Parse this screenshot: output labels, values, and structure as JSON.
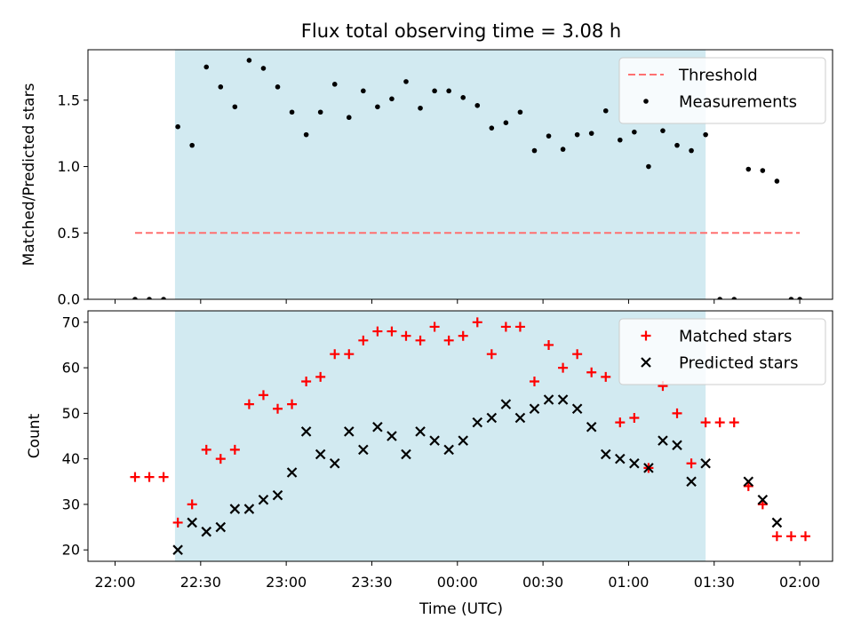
{
  "title": "Flux total observing time = 3.08 h",
  "xlabel": "Time (UTC)",
  "colors": {
    "shade": "#add8e6",
    "threshold": "#ff7070",
    "measurement": "#000000",
    "matched": "#ff0000",
    "predicted": "#000000"
  },
  "chart_data": [
    {
      "type": "scatter",
      "ylabel": "Matched/Predicted stars",
      "ylim": [
        0,
        1.88
      ],
      "yticks": [
        0.0,
        0.5,
        1.0,
        1.5
      ],
      "ytick_labels": [
        "0.0",
        "0.5",
        "1.0",
        "1.5"
      ],
      "legend_position": "top-right",
      "shaded_interval": [
        "22:21",
        "01:27"
      ],
      "threshold": {
        "name": "Threshold",
        "value": 0.5,
        "x_range": [
          "22:07",
          "02:00"
        ],
        "style": "dashed"
      },
      "series": [
        {
          "name": "Measurements",
          "marker": "dot",
          "points": [
            [
              "22:07",
              0.0
            ],
            [
              "22:12",
              0.0
            ],
            [
              "22:17",
              0.0
            ],
            [
              "22:22",
              1.3
            ],
            [
              "22:27",
              1.16
            ],
            [
              "22:32",
              1.75
            ],
            [
              "22:37",
              1.6
            ],
            [
              "22:42",
              1.45
            ],
            [
              "22:47",
              1.8
            ],
            [
              "22:52",
              1.74
            ],
            [
              "22:57",
              1.6
            ],
            [
              "23:02",
              1.41
            ],
            [
              "23:07",
              1.24
            ],
            [
              "23:12",
              1.41
            ],
            [
              "23:17",
              1.62
            ],
            [
              "23:22",
              1.37
            ],
            [
              "23:27",
              1.57
            ],
            [
              "23:32",
              1.45
            ],
            [
              "23:37",
              1.51
            ],
            [
              "23:42",
              1.64
            ],
            [
              "23:47",
              1.44
            ],
            [
              "23:52",
              1.57
            ],
            [
              "23:57",
              1.57
            ],
            [
              "00:02",
              1.52
            ],
            [
              "00:07",
              1.46
            ],
            [
              "00:12",
              1.29
            ],
            [
              "00:17",
              1.33
            ],
            [
              "00:22",
              1.41
            ],
            [
              "00:27",
              1.12
            ],
            [
              "00:32",
              1.23
            ],
            [
              "00:37",
              1.13
            ],
            [
              "00:42",
              1.24
            ],
            [
              "00:47",
              1.25
            ],
            [
              "00:52",
              1.42
            ],
            [
              "00:57",
              1.2
            ],
            [
              "01:02",
              1.26
            ],
            [
              "01:07",
              1.0
            ],
            [
              "01:12",
              1.27
            ],
            [
              "01:17",
              1.16
            ],
            [
              "01:22",
              1.12
            ],
            [
              "01:27",
              1.24
            ],
            [
              "01:32",
              0.0
            ],
            [
              "01:37",
              0.0
            ],
            [
              "01:42",
              0.98
            ],
            [
              "01:47",
              0.97
            ],
            [
              "01:52",
              0.89
            ],
            [
              "01:57",
              0.0
            ],
            [
              "02:00",
              0.0
            ]
          ]
        }
      ]
    },
    {
      "type": "scatter",
      "ylabel": "Count",
      "ylim": [
        17.5,
        72.5
      ],
      "yticks": [
        20,
        30,
        40,
        50,
        60,
        70
      ],
      "ytick_labels": [
        "20",
        "30",
        "40",
        "50",
        "60",
        "70"
      ],
      "legend_position": "top-right",
      "shaded_interval": [
        "22:21",
        "01:27"
      ],
      "series": [
        {
          "name": "Matched stars",
          "marker": "plus",
          "points": [
            [
              "22:07",
              36
            ],
            [
              "22:12",
              36
            ],
            [
              "22:17",
              36
            ],
            [
              "22:22",
              26
            ],
            [
              "22:27",
              30
            ],
            [
              "22:32",
              42
            ],
            [
              "22:37",
              40
            ],
            [
              "22:42",
              42
            ],
            [
              "22:47",
              52
            ],
            [
              "22:52",
              54
            ],
            [
              "22:57",
              51
            ],
            [
              "23:02",
              52
            ],
            [
              "23:07",
              57
            ],
            [
              "23:12",
              58
            ],
            [
              "23:17",
              63
            ],
            [
              "23:22",
              63
            ],
            [
              "23:27",
              66
            ],
            [
              "23:32",
              68
            ],
            [
              "23:37",
              68
            ],
            [
              "23:42",
              67
            ],
            [
              "23:47",
              66
            ],
            [
              "23:52",
              69
            ],
            [
              "23:57",
              66
            ],
            [
              "00:02",
              67
            ],
            [
              "00:07",
              70
            ],
            [
              "00:12",
              63
            ],
            [
              "00:17",
              69
            ],
            [
              "00:22",
              69
            ],
            [
              "00:27",
              57
            ],
            [
              "00:32",
              65
            ],
            [
              "00:37",
              60
            ],
            [
              "00:42",
              63
            ],
            [
              "00:47",
              59
            ],
            [
              "00:52",
              58
            ],
            [
              "00:57",
              48
            ],
            [
              "01:02",
              49
            ],
            [
              "01:07",
              38
            ],
            [
              "01:12",
              56
            ],
            [
              "01:17",
              50
            ],
            [
              "01:22",
              39
            ],
            [
              "01:27",
              48
            ],
            [
              "01:32",
              48
            ],
            [
              "01:37",
              48
            ],
            [
              "01:42",
              34
            ],
            [
              "01:47",
              30
            ],
            [
              "01:52",
              23
            ],
            [
              "01:57",
              23
            ],
            [
              "02:02",
              23
            ]
          ]
        },
        {
          "name": "Predicted stars",
          "marker": "x",
          "points": [
            [
              "22:22",
              20
            ],
            [
              "22:27",
              26
            ],
            [
              "22:32",
              24
            ],
            [
              "22:37",
              25
            ],
            [
              "22:42",
              29
            ],
            [
              "22:47",
              29
            ],
            [
              "22:52",
              31
            ],
            [
              "22:57",
              32
            ],
            [
              "23:02",
              37
            ],
            [
              "23:07",
              46
            ],
            [
              "23:12",
              41
            ],
            [
              "23:17",
              39
            ],
            [
              "23:22",
              46
            ],
            [
              "23:27",
              42
            ],
            [
              "23:32",
              47
            ],
            [
              "23:37",
              45
            ],
            [
              "23:42",
              41
            ],
            [
              "23:47",
              46
            ],
            [
              "23:52",
              44
            ],
            [
              "23:57",
              42
            ],
            [
              "00:02",
              44
            ],
            [
              "00:07",
              48
            ],
            [
              "00:12",
              49
            ],
            [
              "00:17",
              52
            ],
            [
              "00:22",
              49
            ],
            [
              "00:27",
              51
            ],
            [
              "00:32",
              53
            ],
            [
              "00:37",
              53
            ],
            [
              "00:42",
              51
            ],
            [
              "00:47",
              47
            ],
            [
              "00:52",
              41
            ],
            [
              "00:57",
              40
            ],
            [
              "01:02",
              39
            ],
            [
              "01:07",
              38
            ],
            [
              "01:12",
              44
            ],
            [
              "01:17",
              43
            ],
            [
              "01:22",
              35
            ],
            [
              "01:27",
              39
            ],
            [
              "01:42",
              35
            ],
            [
              "01:47",
              31
            ],
            [
              "01:52",
              26
            ]
          ]
        }
      ]
    }
  ],
  "xticks": [
    "22:00",
    "22:30",
    "23:00",
    "23:30",
    "00:00",
    "00:30",
    "01:00",
    "01:30",
    "02:00"
  ]
}
